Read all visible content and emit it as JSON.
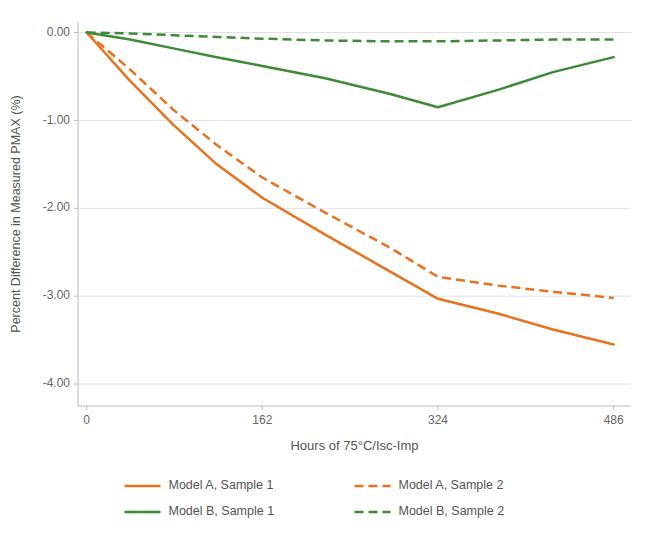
{
  "chart_data": {
    "type": "line",
    "x_label": "Hours of 75°C/Isc-Imp",
    "y_label": "Percent Difference in Measured PMAX (%)",
    "x": [
      0,
      40,
      80,
      120,
      162,
      220,
      280,
      324,
      380,
      430,
      486
    ],
    "xlim": [
      -8,
      502
    ],
    "xticks": [
      0,
      162,
      324,
      486
    ],
    "ylim": [
      -4.25,
      0.12
    ],
    "yticks": [
      {
        "value": 0.0,
        "label": "0.00"
      },
      {
        "value": -1.0,
        "label": "-1.00"
      },
      {
        "value": -2.0,
        "label": "-2.00"
      },
      {
        "value": -3.0,
        "label": "-3.00"
      },
      {
        "value": -4.0,
        "label": "-4.00"
      }
    ],
    "grid": true,
    "legend": "bottom",
    "series": [
      {
        "name": "Model A, Sample 1",
        "color": "#E8721E",
        "line_style": "solid",
        "values": [
          0.0,
          -0.55,
          -1.05,
          -1.5,
          -1.88,
          -2.3,
          -2.72,
          -3.03,
          -3.2,
          -3.38,
          -3.55
        ]
      },
      {
        "name": "Model A, Sample 2",
        "color": "#E8721E",
        "line_style": "dashed",
        "values": [
          0.0,
          -0.42,
          -0.88,
          -1.28,
          -1.65,
          -2.05,
          -2.45,
          -2.78,
          -2.88,
          -2.95,
          -3.02
        ]
      },
      {
        "name": "Model B, Sample 1",
        "color": "#3D8B37",
        "line_style": "solid",
        "values": [
          0.0,
          -0.08,
          -0.18,
          -0.28,
          -0.38,
          -0.52,
          -0.7,
          -0.85,
          -0.65,
          -0.45,
          -0.28
        ]
      },
      {
        "name": "Model B, Sample 2",
        "color": "#3D8B37",
        "line_style": "dashed",
        "values": [
          0.0,
          -0.01,
          -0.03,
          -0.05,
          -0.07,
          -0.09,
          -0.1,
          -0.1,
          -0.09,
          -0.08,
          -0.08
        ]
      }
    ]
  }
}
